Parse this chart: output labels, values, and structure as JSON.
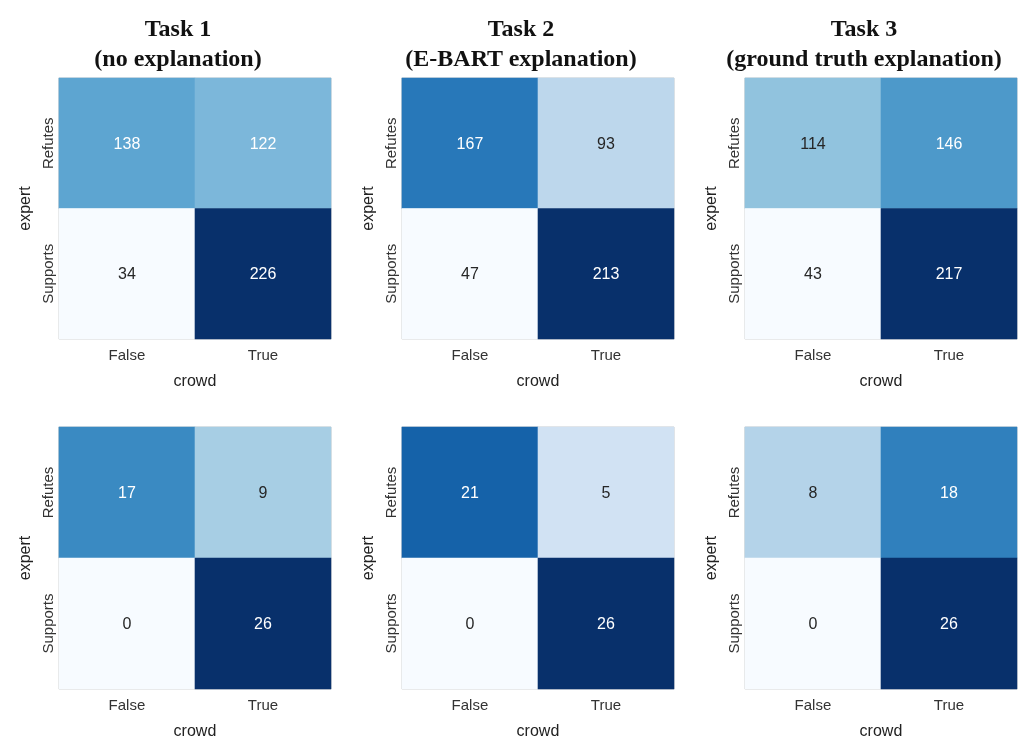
{
  "chart_data": [
    {
      "type": "heatmap",
      "title": "Task 1\n(no explanation)",
      "xlabel": "crowd",
      "ylabel": "expert",
      "categories": [
        "False",
        "True"
      ],
      "y_categories": [
        "Refutes",
        "Supports"
      ],
      "cells": [
        [
          138,
          122
        ],
        [
          34,
          226
        ]
      ],
      "data_labels": true,
      "grid": false
    },
    {
      "type": "heatmap",
      "title": "Task 2\n(E-BART explanation)",
      "xlabel": "crowd",
      "ylabel": "expert",
      "categories": [
        "False",
        "True"
      ],
      "y_categories": [
        "Refutes",
        "Supports"
      ],
      "cells": [
        [
          167,
          93
        ],
        [
          47,
          213
        ]
      ],
      "data_labels": true,
      "grid": false
    },
    {
      "type": "heatmap",
      "title": "Task 3\n(ground truth explanation)",
      "xlabel": "crowd",
      "ylabel": "expert",
      "categories": [
        "False",
        "True"
      ],
      "y_categories": [
        "Refutes",
        "Supports"
      ],
      "cells": [
        [
          114,
          146
        ],
        [
          43,
          217
        ]
      ],
      "data_labels": true,
      "grid": false
    },
    {
      "type": "heatmap",
      "xlabel": "crowd",
      "ylabel": "expert",
      "categories": [
        "False",
        "True"
      ],
      "y_categories": [
        "Refutes",
        "Supports"
      ],
      "cells": [
        [
          17,
          9
        ],
        [
          0,
          26
        ]
      ],
      "data_labels": true,
      "grid": false
    },
    {
      "type": "heatmap",
      "xlabel": "crowd",
      "ylabel": "expert",
      "categories": [
        "False",
        "True"
      ],
      "y_categories": [
        "Refutes",
        "Supports"
      ],
      "cells": [
        [
          21,
          5
        ],
        [
          0,
          26
        ]
      ],
      "data_labels": true,
      "grid": false
    },
    {
      "type": "heatmap",
      "xlabel": "crowd",
      "ylabel": "expert",
      "categories": [
        "False",
        "True"
      ],
      "y_categories": [
        "Refutes",
        "Supports"
      ],
      "cells": [
        [
          8,
          18
        ],
        [
          0,
          26
        ]
      ],
      "data_labels": true,
      "grid": false
    }
  ]
}
